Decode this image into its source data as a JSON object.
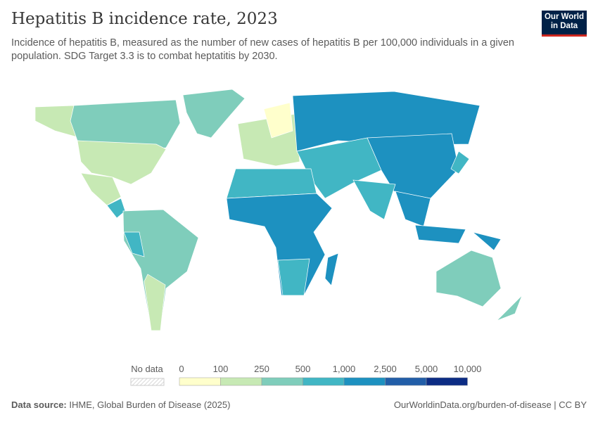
{
  "header": {
    "title": "Hepatitis B incidence rate, 2023",
    "subtitle": "Incidence of hepatitis B, measured as the number of new cases of hepatitis B per 100,000 individuals in a given population. SDG Target 3.3 is to combat heptatitis by 2030.",
    "logo": "Our World in Data"
  },
  "legend": {
    "no_data_label": "No data",
    "ticks": [
      "0",
      "100",
      "250",
      "500",
      "1,000",
      "2,500",
      "5,000",
      "10,000"
    ],
    "colors": [
      "#ffffcc",
      "#c7e9b4",
      "#7fcdbb",
      "#41b6c4",
      "#1d91c0",
      "#225ea8",
      "#0c2c84"
    ],
    "no_data_color": "#e5e5e5"
  },
  "footer": {
    "source_label": "Data source:",
    "source": "IHME, Global Burden of Disease (2025)",
    "link": "OurWorldinData.org/burden-of-disease | CC BY"
  }
}
